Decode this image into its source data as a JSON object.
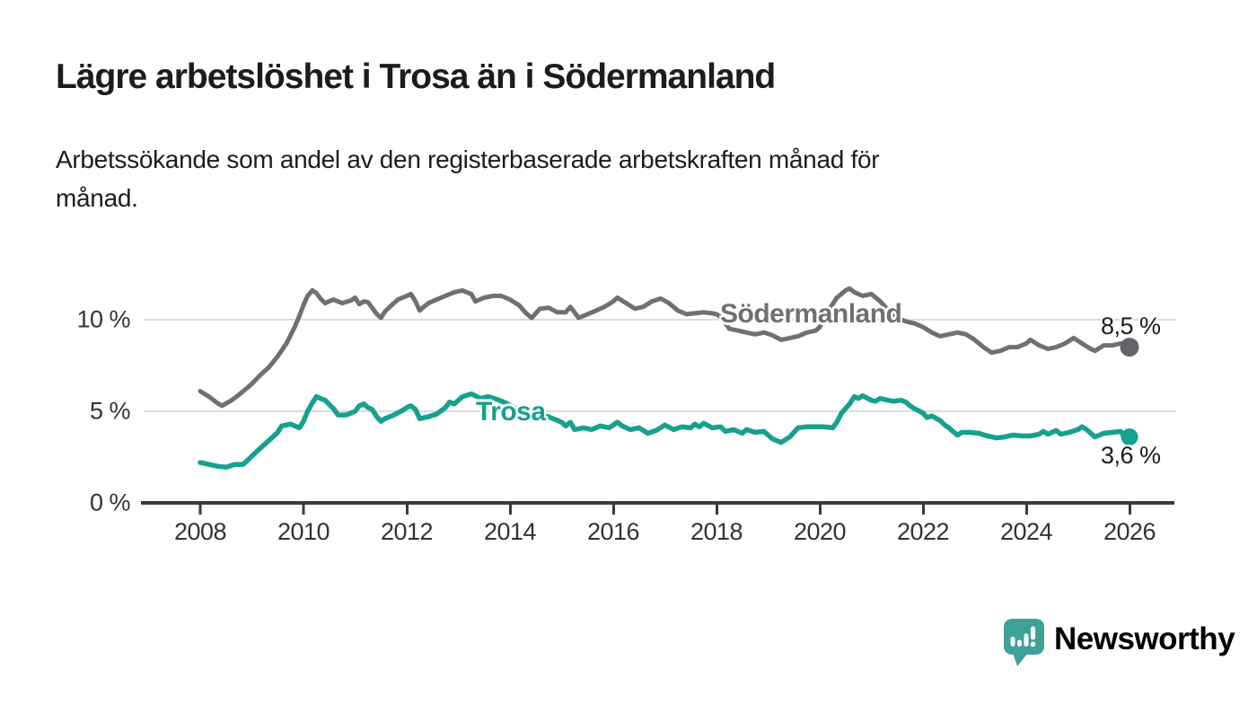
{
  "chart_data": {
    "type": "line",
    "title": "Lägre arbetslöshet i Trosa än i Södermanland",
    "subtitle": "Arbetssökande som andel av den registerbaserade arbetskraften månad för\nmånad.",
    "unit": "%",
    "grid": "horizontal-gridlines-at-5-and-10",
    "legend_position": "inline-labels-on-lines",
    "x_axis": {
      "range_years": [
        2008,
        2026.2
      ],
      "ticks": [
        2008,
        2010,
        2012,
        2014,
        2016,
        2018,
        2020,
        2022,
        2024,
        2026
      ],
      "tick_labels": [
        "2008",
        "2010",
        "2012",
        "2014",
        "2016",
        "2018",
        "2020",
        "2022",
        "2024",
        "2026"
      ]
    },
    "y_axis": {
      "range": [
        0,
        12.5
      ],
      "ticks": [
        0,
        5,
        10
      ],
      "tick_labels": [
        "0 %",
        "5 %",
        "10 %"
      ]
    },
    "series": [
      {
        "name": "Södermanland",
        "color": "#6F6F74",
        "end_value": 8.5,
        "end_label": "8,5 %",
        "points": [
          [
            2008.0,
            6.1
          ],
          [
            2008.17,
            5.8
          ],
          [
            2008.33,
            5.45
          ],
          [
            2008.42,
            5.3
          ],
          [
            2008.58,
            5.55
          ],
          [
            2008.75,
            5.9
          ],
          [
            2008.92,
            6.3
          ],
          [
            2009.0,
            6.5
          ],
          [
            2009.17,
            7.0
          ],
          [
            2009.33,
            7.4
          ],
          [
            2009.5,
            8.0
          ],
          [
            2009.67,
            8.7
          ],
          [
            2009.83,
            9.6
          ],
          [
            2009.92,
            10.2
          ],
          [
            2010.0,
            10.8
          ],
          [
            2010.08,
            11.3
          ],
          [
            2010.17,
            11.6
          ],
          [
            2010.25,
            11.45
          ],
          [
            2010.33,
            11.15
          ],
          [
            2010.42,
            10.9
          ],
          [
            2010.5,
            11.0
          ],
          [
            2010.58,
            11.1
          ],
          [
            2010.75,
            10.9
          ],
          [
            2010.92,
            11.05
          ],
          [
            2011.0,
            11.2
          ],
          [
            2011.08,
            10.85
          ],
          [
            2011.17,
            11.0
          ],
          [
            2011.25,
            10.95
          ],
          [
            2011.33,
            10.65
          ],
          [
            2011.42,
            10.3
          ],
          [
            2011.5,
            10.1
          ],
          [
            2011.58,
            10.45
          ],
          [
            2011.75,
            10.9
          ],
          [
            2011.83,
            11.1
          ],
          [
            2012.0,
            11.3
          ],
          [
            2012.08,
            11.4
          ],
          [
            2012.17,
            11.0
          ],
          [
            2012.25,
            10.5
          ],
          [
            2012.33,
            10.7
          ],
          [
            2012.42,
            10.9
          ],
          [
            2012.58,
            11.1
          ],
          [
            2012.75,
            11.3
          ],
          [
            2012.92,
            11.5
          ],
          [
            2013.08,
            11.6
          ],
          [
            2013.25,
            11.4
          ],
          [
            2013.33,
            11.0
          ],
          [
            2013.5,
            11.2
          ],
          [
            2013.67,
            11.3
          ],
          [
            2013.83,
            11.3
          ],
          [
            2014.0,
            11.1
          ],
          [
            2014.17,
            10.8
          ],
          [
            2014.33,
            10.3
          ],
          [
            2014.42,
            10.1
          ],
          [
            2014.58,
            10.6
          ],
          [
            2014.75,
            10.65
          ],
          [
            2014.92,
            10.4
          ],
          [
            2015.08,
            10.4
          ],
          [
            2015.17,
            10.7
          ],
          [
            2015.33,
            10.1
          ],
          [
            2015.5,
            10.3
          ],
          [
            2015.67,
            10.5
          ],
          [
            2015.83,
            10.7
          ],
          [
            2016.0,
            11.0
          ],
          [
            2016.08,
            11.2
          ],
          [
            2016.25,
            10.9
          ],
          [
            2016.42,
            10.6
          ],
          [
            2016.58,
            10.7
          ],
          [
            2016.75,
            11.0
          ],
          [
            2016.92,
            11.15
          ],
          [
            2017.08,
            10.9
          ],
          [
            2017.25,
            10.5
          ],
          [
            2017.42,
            10.3
          ],
          [
            2017.58,
            10.35
          ],
          [
            2017.75,
            10.4
          ],
          [
            2017.92,
            10.35
          ],
          [
            2018.0,
            10.3
          ],
          [
            2018.08,
            10.15
          ],
          [
            2018.25,
            9.5
          ],
          [
            2018.42,
            9.4
          ],
          [
            2018.58,
            9.3
          ],
          [
            2018.75,
            9.2
          ],
          [
            2018.92,
            9.3
          ],
          [
            2019.08,
            9.15
          ],
          [
            2019.25,
            8.9
          ],
          [
            2019.42,
            9.0
          ],
          [
            2019.58,
            9.1
          ],
          [
            2019.75,
            9.3
          ],
          [
            2019.92,
            9.4
          ],
          [
            2020.0,
            9.6
          ],
          [
            2020.17,
            10.5
          ],
          [
            2020.33,
            11.2
          ],
          [
            2020.5,
            11.6
          ],
          [
            2020.58,
            11.7
          ],
          [
            2020.67,
            11.5
          ],
          [
            2020.83,
            11.3
          ],
          [
            2021.0,
            11.4
          ],
          [
            2021.17,
            11.0
          ],
          [
            2021.33,
            10.5
          ],
          [
            2021.5,
            10.1
          ],
          [
            2021.67,
            9.9
          ],
          [
            2021.83,
            9.8
          ],
          [
            2022.0,
            9.6
          ],
          [
            2022.17,
            9.3
          ],
          [
            2022.33,
            9.1
          ],
          [
            2022.5,
            9.2
          ],
          [
            2022.67,
            9.3
          ],
          [
            2022.83,
            9.2
          ],
          [
            2023.0,
            8.9
          ],
          [
            2023.17,
            8.5
          ],
          [
            2023.33,
            8.2
          ],
          [
            2023.5,
            8.3
          ],
          [
            2023.67,
            8.5
          ],
          [
            2023.83,
            8.5
          ],
          [
            2024.0,
            8.7
          ],
          [
            2024.08,
            8.9
          ],
          [
            2024.25,
            8.6
          ],
          [
            2024.42,
            8.4
          ],
          [
            2024.58,
            8.5
          ],
          [
            2024.75,
            8.7
          ],
          [
            2024.92,
            9.0
          ],
          [
            2025.08,
            8.7
          ],
          [
            2025.25,
            8.4
          ],
          [
            2025.33,
            8.3
          ],
          [
            2025.5,
            8.6
          ],
          [
            2025.67,
            8.6
          ],
          [
            2025.83,
            8.7
          ],
          [
            2025.92,
            8.6
          ],
          [
            2026.0,
            8.5
          ]
        ]
      },
      {
        "name": "Trosa",
        "color": "#16A18D",
        "end_value": 3.6,
        "end_label": "3,6 %",
        "points": [
          [
            2008.0,
            2.2
          ],
          [
            2008.17,
            2.1
          ],
          [
            2008.33,
            2.0
          ],
          [
            2008.5,
            1.95
          ],
          [
            2008.67,
            2.1
          ],
          [
            2008.83,
            2.1
          ],
          [
            2009.0,
            2.55
          ],
          [
            2009.17,
            3.0
          ],
          [
            2009.33,
            3.4
          ],
          [
            2009.5,
            3.85
          ],
          [
            2009.58,
            4.2
          ],
          [
            2009.75,
            4.3
          ],
          [
            2009.92,
            4.1
          ],
          [
            2010.0,
            4.45
          ],
          [
            2010.08,
            5.0
          ],
          [
            2010.17,
            5.45
          ],
          [
            2010.25,
            5.8
          ],
          [
            2010.33,
            5.7
          ],
          [
            2010.42,
            5.6
          ],
          [
            2010.58,
            5.15
          ],
          [
            2010.67,
            4.8
          ],
          [
            2010.83,
            4.8
          ],
          [
            2010.92,
            4.9
          ],
          [
            2011.0,
            5.0
          ],
          [
            2011.08,
            5.3
          ],
          [
            2011.17,
            5.4
          ],
          [
            2011.25,
            5.2
          ],
          [
            2011.33,
            5.1
          ],
          [
            2011.42,
            4.7
          ],
          [
            2011.5,
            4.45
          ],
          [
            2011.58,
            4.6
          ],
          [
            2011.75,
            4.8
          ],
          [
            2011.92,
            5.05
          ],
          [
            2012.0,
            5.2
          ],
          [
            2012.08,
            5.3
          ],
          [
            2012.17,
            5.1
          ],
          [
            2012.25,
            4.6
          ],
          [
            2012.42,
            4.7
          ],
          [
            2012.58,
            4.85
          ],
          [
            2012.75,
            5.2
          ],
          [
            2012.83,
            5.5
          ],
          [
            2012.92,
            5.4
          ],
          [
            2013.0,
            5.6
          ],
          [
            2013.08,
            5.8
          ],
          [
            2013.25,
            5.95
          ],
          [
            2013.33,
            5.85
          ],
          [
            2013.42,
            5.7
          ],
          [
            2013.58,
            5.8
          ],
          [
            2013.75,
            5.65
          ],
          [
            2013.92,
            5.45
          ],
          [
            2014.08,
            5.2
          ],
          [
            2014.25,
            5.0
          ],
          [
            2014.42,
            4.85
          ],
          [
            2014.58,
            4.8
          ],
          [
            2014.75,
            4.7
          ],
          [
            2014.92,
            4.5
          ],
          [
            2015.0,
            4.4
          ],
          [
            2015.08,
            4.2
          ],
          [
            2015.17,
            4.4
          ],
          [
            2015.25,
            4.0
          ],
          [
            2015.42,
            4.1
          ],
          [
            2015.58,
            4.0
          ],
          [
            2015.75,
            4.2
          ],
          [
            2015.92,
            4.1
          ],
          [
            2016.08,
            4.4
          ],
          [
            2016.17,
            4.2
          ],
          [
            2016.33,
            4.0
          ],
          [
            2016.5,
            4.1
          ],
          [
            2016.67,
            3.8
          ],
          [
            2016.83,
            3.95
          ],
          [
            2017.0,
            4.25
          ],
          [
            2017.17,
            4.0
          ],
          [
            2017.33,
            4.15
          ],
          [
            2017.5,
            4.1
          ],
          [
            2017.58,
            4.3
          ],
          [
            2017.67,
            4.15
          ],
          [
            2017.75,
            4.35
          ],
          [
            2017.92,
            4.1
          ],
          [
            2018.08,
            4.15
          ],
          [
            2018.17,
            3.9
          ],
          [
            2018.33,
            4.0
          ],
          [
            2018.5,
            3.8
          ],
          [
            2018.58,
            4.0
          ],
          [
            2018.75,
            3.85
          ],
          [
            2018.92,
            3.9
          ],
          [
            2019.0,
            3.7
          ],
          [
            2019.08,
            3.5
          ],
          [
            2019.25,
            3.3
          ],
          [
            2019.42,
            3.6
          ],
          [
            2019.58,
            4.1
          ],
          [
            2019.75,
            4.15
          ],
          [
            2019.92,
            4.15
          ],
          [
            2020.08,
            4.15
          ],
          [
            2020.25,
            4.1
          ],
          [
            2020.33,
            4.4
          ],
          [
            2020.42,
            4.9
          ],
          [
            2020.58,
            5.4
          ],
          [
            2020.67,
            5.8
          ],
          [
            2020.75,
            5.7
          ],
          [
            2020.83,
            5.85
          ],
          [
            2021.0,
            5.6
          ],
          [
            2021.08,
            5.55
          ],
          [
            2021.17,
            5.7
          ],
          [
            2021.33,
            5.6
          ],
          [
            2021.42,
            5.55
          ],
          [
            2021.58,
            5.6
          ],
          [
            2021.67,
            5.5
          ],
          [
            2021.75,
            5.3
          ],
          [
            2021.83,
            5.15
          ],
          [
            2022.0,
            4.9
          ],
          [
            2022.08,
            4.65
          ],
          [
            2022.17,
            4.75
          ],
          [
            2022.33,
            4.5
          ],
          [
            2022.42,
            4.25
          ],
          [
            2022.5,
            4.1
          ],
          [
            2022.58,
            3.9
          ],
          [
            2022.67,
            3.7
          ],
          [
            2022.75,
            3.85
          ],
          [
            2022.92,
            3.85
          ],
          [
            2023.08,
            3.8
          ],
          [
            2023.25,
            3.65
          ],
          [
            2023.42,
            3.55
          ],
          [
            2023.58,
            3.6
          ],
          [
            2023.75,
            3.7
          ],
          [
            2023.92,
            3.65
          ],
          [
            2024.08,
            3.65
          ],
          [
            2024.25,
            3.75
          ],
          [
            2024.33,
            3.9
          ],
          [
            2024.42,
            3.75
          ],
          [
            2024.58,
            3.95
          ],
          [
            2024.67,
            3.75
          ],
          [
            2024.83,
            3.85
          ],
          [
            2025.0,
            4.0
          ],
          [
            2025.08,
            4.15
          ],
          [
            2025.17,
            4.0
          ],
          [
            2025.33,
            3.6
          ],
          [
            2025.5,
            3.8
          ],
          [
            2025.67,
            3.85
          ],
          [
            2025.83,
            3.9
          ],
          [
            2025.92,
            3.5
          ],
          [
            2026.0,
            3.6
          ]
        ]
      }
    ]
  },
  "branding": {
    "logo_text": "Newsworthy",
    "logo_color": "#3FA098"
  },
  "colors": {
    "sodermanland_line": "#6F6F74",
    "trosa_line": "#16A18D",
    "gridline": "#DCDCDC",
    "axis": "#3A3A3A",
    "text": "#1C1C1A"
  }
}
